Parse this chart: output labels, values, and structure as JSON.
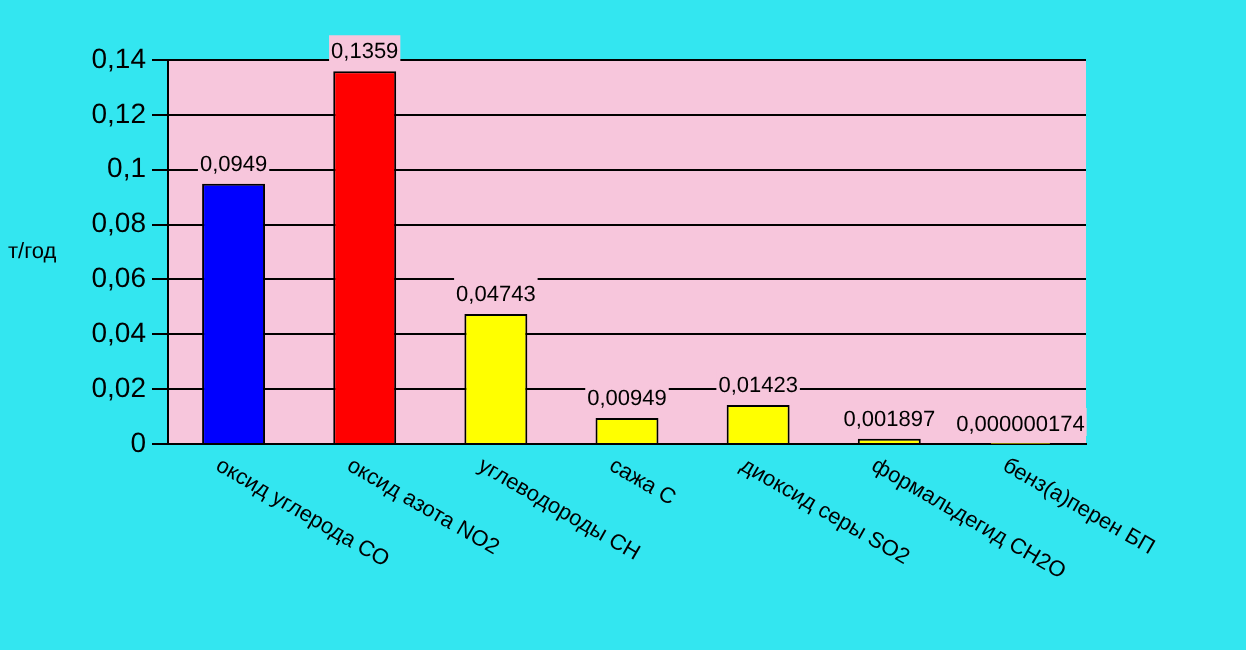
{
  "chart_data": {
    "type": "bar",
    "ylabel": "т/год",
    "categories": [
      "оксид углерода СО",
      "оксид азота NO2",
      "углеводороды СН",
      "сажа С",
      "диоксид серы SO2",
      "формальдегид СН2О",
      "бенз(а)перен БП"
    ],
    "values": [
      0.0949,
      0.1359,
      0.04743,
      0.00949,
      0.01423,
      0.001897,
      1.74e-07
    ],
    "colors": [
      "#0000ff",
      "#ff0000",
      "#ffff00",
      "#ffff00",
      "#ffff00",
      "#ffff00",
      "#ffff00"
    ],
    "value_labels": [
      "0,0949",
      "0,1359",
      "0,04743",
      "0,00949",
      "0,01423",
      "0,001897",
      "0,000000174"
    ],
    "ylim": [
      0,
      0.14
    ],
    "yticks": [
      0,
      {
        "value": 0.02,
        "label": "0,02"
      },
      {
        "value": 0.04,
        "label": "0,04"
      },
      {
        "value": 0.06,
        "label": "0,06"
      },
      {
        "value": 0.08,
        "label": "0,08"
      },
      {
        "value": 0.1,
        "label": "0,1"
      },
      {
        "value": 0.12,
        "label": "0,12"
      },
      {
        "value": 0.14,
        "label": "0,14"
      }
    ],
    "grid": "y"
  }
}
